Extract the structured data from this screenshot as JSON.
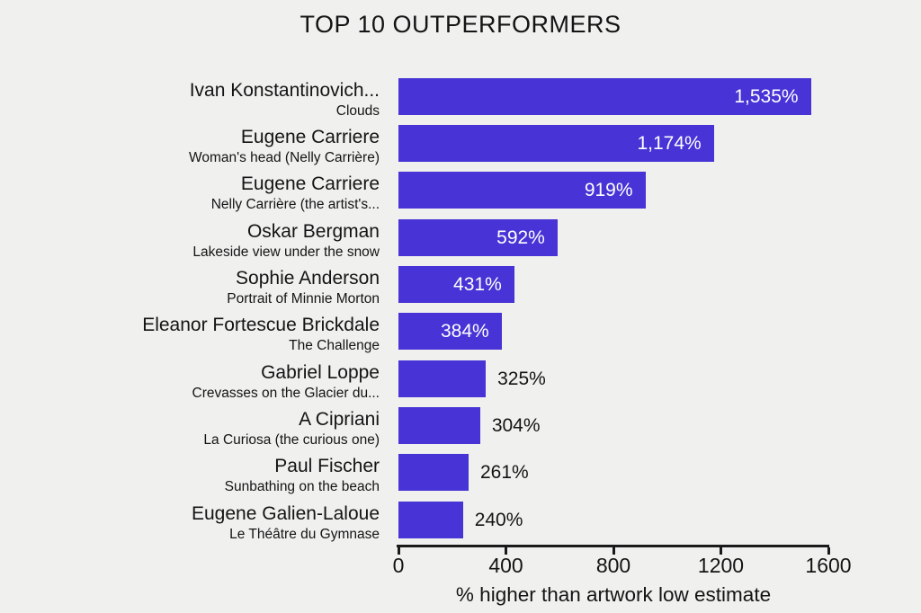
{
  "colors": {
    "bar": "#4733d6",
    "background": "#f0f0ee",
    "text": "#141414",
    "value_label_inside": "#ffffff"
  },
  "chart_data": {
    "type": "bar",
    "orientation": "horizontal",
    "title": "TOP 10 OUTPERFORMERS",
    "xlabel": "% higher than artwork low estimate",
    "xlim": [
      0,
      1600
    ],
    "xticks": [
      0,
      400,
      800,
      1200,
      1600
    ],
    "grid": false,
    "legend": false,
    "items": [
      {
        "artist": "Ivan Konstantinovich...",
        "artwork": "Clouds",
        "value": 1535,
        "label": "1,535%"
      },
      {
        "artist": "Eugene Carriere",
        "artwork": "Woman's head (Nelly Carrière)",
        "value": 1174,
        "label": "1,174%"
      },
      {
        "artist": "Eugene Carriere",
        "artwork": "Nelly Carrière (the artist's...",
        "value": 919,
        "label": "919%"
      },
      {
        "artist": "Oskar Bergman",
        "artwork": "Lakeside view under the snow",
        "value": 592,
        "label": "592%"
      },
      {
        "artist": "Sophie Anderson",
        "artwork": "Portrait of Minnie Morton",
        "value": 431,
        "label": "431%"
      },
      {
        "artist": "Eleanor Fortescue Brickdale",
        "artwork": "The Challenge",
        "value": 384,
        "label": "384%"
      },
      {
        "artist": "Gabriel Loppe",
        "artwork": "Crevasses on the Glacier du...",
        "value": 325,
        "label": "325%"
      },
      {
        "artist": "A Cipriani",
        "artwork": "La Curiosa (the curious one)",
        "value": 304,
        "label": "304%"
      },
      {
        "artist": "Paul Fischer",
        "artwork": "Sunbathing on the beach",
        "value": 261,
        "label": "261%"
      },
      {
        "artist": "Eugene Galien-Laloue",
        "artwork": "Le Théâtre du Gymnase",
        "value": 240,
        "label": "240%"
      }
    ]
  }
}
